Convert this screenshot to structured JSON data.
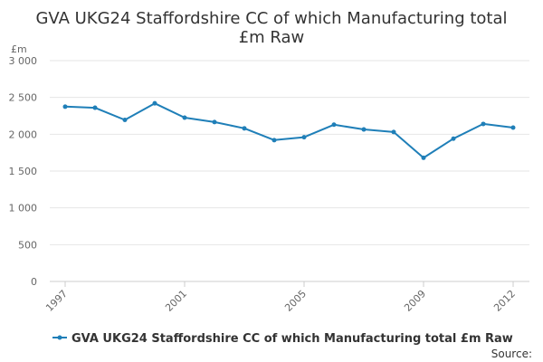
{
  "chart_data": {
    "type": "line",
    "title_lines": [
      "GVA UKG24 Staffordshire CC of which Manufacturing total",
      "£m Raw"
    ],
    "ylabel": "£m",
    "ylim": [
      0,
      3000
    ],
    "yticks": [
      0,
      500,
      1000,
      1500,
      2000,
      2500,
      3000
    ],
    "ytick_labels": [
      "0",
      "500",
      "1 000",
      "1 500",
      "2 000",
      "2 500",
      "3 000"
    ],
    "xlim": [
      1997,
      2012
    ],
    "xticks": [
      1997,
      2001,
      2005,
      2009,
      2012
    ],
    "xtick_labels": [
      "1997",
      "2001",
      "2005",
      "2009",
      "2012"
    ],
    "grid": true,
    "legend_placement": "bottom",
    "source_label": "Source:",
    "series": [
      {
        "name": "GVA UKG24 Staffordshire CC of which Manufacturing total £m Raw",
        "color": "#1f7fb8",
        "x": [
          1997,
          1998,
          1999,
          2000,
          2001,
          2002,
          2003,
          2004,
          2005,
          2006,
          2007,
          2008,
          2009,
          2010,
          2011,
          2012
        ],
        "values": [
          2375,
          2360,
          2195,
          2420,
          2225,
          2165,
          2080,
          1920,
          1960,
          2130,
          2065,
          2030,
          1680,
          1940,
          2140,
          2090
        ]
      }
    ]
  }
}
